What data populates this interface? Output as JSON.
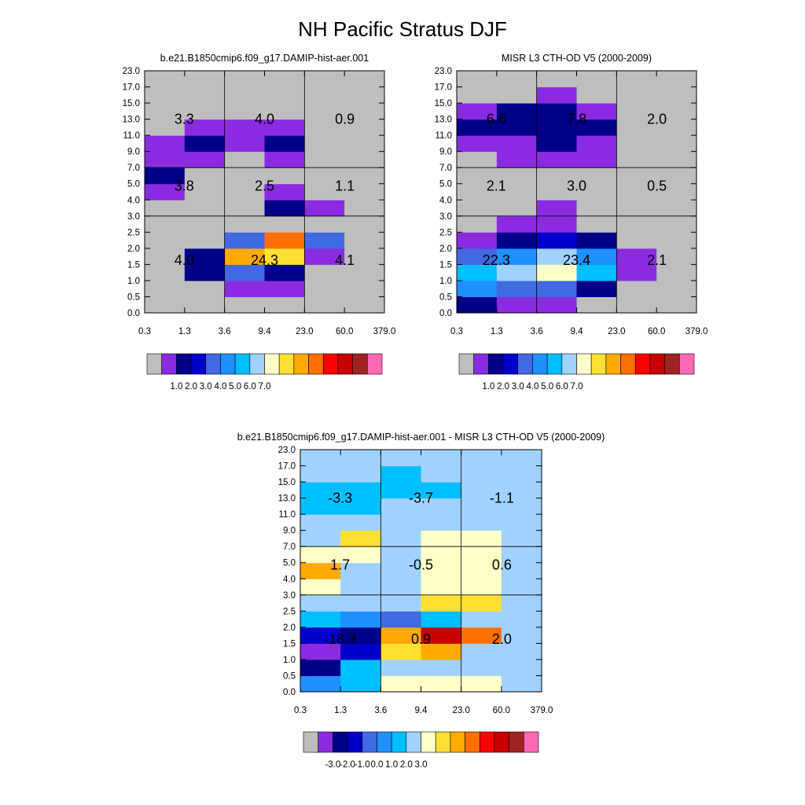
{
  "title": "NH Pacific Stratus DJF",
  "colors": {
    "abs": [
      "#bebebe",
      "#8a2be2",
      "#00008b",
      "#0000cd",
      "#4169e1",
      "#1e90ff",
      "#00bfff",
      "#a0d2ff",
      "#ffffc8",
      "#ffe032",
      "#ffaa00",
      "#ff6e00",
      "#ff0000",
      "#c80000",
      "#a02323",
      "#ff69b4"
    ],
    "diff": [
      "#bebebe",
      "#8a2be2",
      "#00008b",
      "#0000cd",
      "#4169e1",
      "#1e90ff",
      "#00bfff",
      "#a0d2ff",
      "#ffffc8",
      "#ffe032",
      "#ffaa00",
      "#ff6e00",
      "#ff0000",
      "#c80000",
      "#a02323",
      "#ff69b4"
    ]
  },
  "chart_data": [
    {
      "type": "heatmap",
      "title": "b.e21.B1850cmip6.f09_g17.DAMIP-hist-aer.001",
      "xlabel": "",
      "ylabel": "",
      "x_ticks": [
        "0.3",
        "1.3",
        "3.6",
        "9.4",
        "23.0",
        "60.0",
        "379.0"
      ],
      "y_ticks": [
        "0.0",
        "0.5",
        "1.0",
        "1.5",
        "2.0",
        "2.5",
        "3.0",
        "4.0",
        "5.0",
        "7.0",
        "9.0",
        "11.0",
        "13.0",
        "15.0",
        "17.0",
        "23.0"
      ],
      "cells": [
        [
          0,
          0,
          0,
          0,
          0,
          0
        ],
        [
          0,
          0,
          1,
          1,
          0,
          0
        ],
        [
          0,
          2,
          4,
          2,
          0,
          0
        ],
        [
          0,
          2,
          10,
          9,
          1,
          0
        ],
        [
          0,
          0,
          4,
          11,
          4,
          0
        ],
        [
          0,
          0,
          0,
          0,
          0,
          0
        ],
        [
          0,
          0,
          0,
          2,
          1,
          0
        ],
        [
          1,
          0,
          0,
          1,
          0,
          0
        ],
        [
          2,
          0,
          0,
          0,
          0,
          0
        ],
        [
          1,
          1,
          0,
          1,
          0,
          0
        ],
        [
          1,
          2,
          1,
          2,
          0,
          0
        ],
        [
          0,
          1,
          1,
          1,
          0,
          0
        ],
        [
          0,
          0,
          0,
          0,
          0,
          0
        ],
        [
          0,
          0,
          0,
          0,
          0,
          0
        ],
        [
          0,
          0,
          0,
          0,
          0,
          0
        ]
      ],
      "annotations": [
        {
          "text": "3.3",
          "col": 0,
          "row": 2
        },
        {
          "text": "4.0",
          "col": 1,
          "row": 2
        },
        {
          "text": "0.9",
          "col": 2,
          "row": 2
        },
        {
          "text": "3.8",
          "col": 0,
          "row": 1
        },
        {
          "text": "2.5",
          "col": 1,
          "row": 1
        },
        {
          "text": "1.1",
          "col": 2,
          "row": 1
        },
        {
          "text": "4.0",
          "col": 0,
          "row": 0
        },
        {
          "text": "24.3",
          "col": 1,
          "row": 0
        },
        {
          "text": "4.1",
          "col": 2,
          "row": 0
        }
      ],
      "palette": "abs",
      "colorbar_labels": [
        "1.0",
        "2.0",
        "3.0",
        "4.0",
        "5.0",
        "6.0",
        "7.0"
      ]
    },
    {
      "type": "heatmap",
      "title": "MISR L3 CTH-OD V5 (2000-2009)",
      "xlabel": "",
      "ylabel": "",
      "x_ticks": [
        "0.3",
        "1.3",
        "3.6",
        "9.4",
        "23.0",
        "60.0",
        "379.0"
      ],
      "y_ticks": [
        "0.0",
        "0.5",
        "1.0",
        "1.5",
        "2.0",
        "2.5",
        "3.0",
        "4.0",
        "5.0",
        "7.0",
        "9.0",
        "11.0",
        "13.0",
        "15.0",
        "17.0",
        "23.0"
      ],
      "cells": [
        [
          2,
          1,
          1,
          0,
          0,
          0
        ],
        [
          5,
          4,
          4,
          2,
          0,
          0
        ],
        [
          6,
          7,
          8,
          6,
          1,
          0
        ],
        [
          4,
          5,
          7,
          5,
          1,
          0
        ],
        [
          1,
          2,
          3,
          2,
          0,
          0
        ],
        [
          0,
          1,
          1,
          0,
          0,
          0
        ],
        [
          0,
          0,
          1,
          0,
          0,
          0
        ],
        [
          0,
          0,
          0,
          0,
          0,
          0
        ],
        [
          0,
          0,
          0,
          0,
          0,
          0
        ],
        [
          0,
          1,
          1,
          1,
          0,
          0
        ],
        [
          1,
          1,
          2,
          1,
          0,
          0
        ],
        [
          2,
          2,
          2,
          2,
          0,
          0
        ],
        [
          1,
          2,
          2,
          1,
          0,
          0
        ],
        [
          0,
          0,
          1,
          0,
          0,
          0
        ],
        [
          0,
          0,
          0,
          0,
          0,
          0
        ]
      ],
      "annotations": [
        {
          "text": "6.6",
          "col": 0,
          "row": 2
        },
        {
          "text": "7.8",
          "col": 1,
          "row": 2
        },
        {
          "text": "2.0",
          "col": 2,
          "row": 2
        },
        {
          "text": "2.1",
          "col": 0,
          "row": 1
        },
        {
          "text": "3.0",
          "col": 1,
          "row": 1
        },
        {
          "text": "0.5",
          "col": 2,
          "row": 1
        },
        {
          "text": "22.3",
          "col": 0,
          "row": 0
        },
        {
          "text": "23.4",
          "col": 1,
          "row": 0
        },
        {
          "text": "2.1",
          "col": 2,
          "row": 0
        }
      ],
      "palette": "abs",
      "colorbar_labels": [
        "1.0",
        "2.0",
        "3.0",
        "4.0",
        "5.0",
        "6.0",
        "7.0"
      ]
    },
    {
      "type": "heatmap",
      "title": "b.e21.B1850cmip6.f09_g17.DAMIP-hist-aer.001 - MISR L3 CTH-OD V5 (2000-2009)",
      "xlabel": "",
      "ylabel": "",
      "x_ticks": [
        "0.3",
        "1.3",
        "3.6",
        "9.4",
        "23.0",
        "60.0",
        "379.0"
      ],
      "y_ticks": [
        "0.0",
        "0.5",
        "1.0",
        "1.5",
        "2.0",
        "2.5",
        "3.0",
        "4.0",
        "5.0",
        "7.0",
        "9.0",
        "11.0",
        "13.0",
        "15.0",
        "17.0",
        "23.0"
      ],
      "cells": [
        [
          5,
          6,
          8,
          8,
          8,
          7
        ],
        [
          2,
          6,
          7,
          7,
          7,
          7
        ],
        [
          1,
          3,
          9,
          10,
          7,
          7
        ],
        [
          3,
          2,
          10,
          13,
          11,
          7
        ],
        [
          6,
          5,
          4,
          6,
          7,
          7
        ],
        [
          7,
          7,
          7,
          9,
          9,
          7
        ],
        [
          8,
          7,
          7,
          8,
          8,
          7
        ],
        [
          10,
          7,
          7,
          8,
          8,
          7
        ],
        [
          8,
          8,
          7,
          8,
          8,
          7
        ],
        [
          7,
          9,
          7,
          8,
          8,
          7
        ],
        [
          7,
          7,
          7,
          7,
          7,
          7
        ],
        [
          6,
          6,
          7,
          7,
          7,
          7
        ],
        [
          6,
          6,
          6,
          6,
          7,
          7
        ],
        [
          7,
          7,
          6,
          7,
          7,
          7
        ],
        [
          7,
          7,
          7,
          7,
          7,
          7
        ]
      ],
      "annotations": [
        {
          "text": "-3.3",
          "col": 0,
          "row": 2
        },
        {
          "text": "-3.7",
          "col": 1,
          "row": 2
        },
        {
          "text": "-1.1",
          "col": 2,
          "row": 2
        },
        {
          "text": "1.7",
          "col": 0,
          "row": 1
        },
        {
          "text": "-0.5",
          "col": 1,
          "row": 1
        },
        {
          "text": "0.6",
          "col": 2,
          "row": 1
        },
        {
          "text": "-18.3",
          "col": 0,
          "row": 0
        },
        {
          "text": "0.9",
          "col": 1,
          "row": 0
        },
        {
          "text": "2.0",
          "col": 2,
          "row": 0
        }
      ],
      "palette": "diff",
      "colorbar_labels": [
        "-3.0",
        "-2.0",
        "-1.0",
        "0.0",
        "1.0",
        "2.0",
        "3.0"
      ]
    }
  ]
}
